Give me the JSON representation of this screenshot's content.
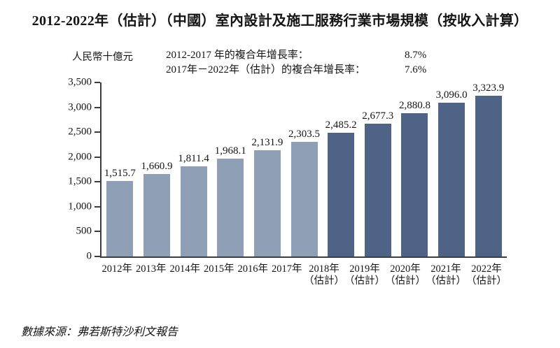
{
  "title": "2012-2022年（估計）（中國）室內設計及施工服務行業市場規模（按收入計算）",
  "unit_label": "人民幣十億元",
  "cagr": [
    {
      "label": "2012-2017 年的複合年增長率：",
      "value": "8.7%"
    },
    {
      "label": "2017年－2022年（估計）的複合年增長率：",
      "value": "7.6%"
    }
  ],
  "source": "數據來源：弗若斯特沙利文報告",
  "chart_data": {
    "type": "bar",
    "title": "2012-2022年（估計）（中國）室內設計及施工服務行業市場規模（按收入計算）",
    "ylabel": "人民幣十億元",
    "xlabel": "",
    "categories": [
      "2012年",
      "2013年",
      "2014年",
      "2015年",
      "2016年",
      "2017年",
      "2018年",
      "2019年",
      "2020年",
      "2021年",
      "2022年"
    ],
    "estimate_note": "（估計）",
    "historical_count": 6,
    "values": [
      1515.7,
      1660.9,
      1811.4,
      1968.1,
      2131.9,
      2303.5,
      2485.2,
      2677.3,
      2880.8,
      3096.0,
      3323.9
    ],
    "value_labels": [
      "1,515.7",
      "1,660.9",
      "1,811.4",
      "1,968.1",
      "2,131.9",
      "2,303.5",
      "2,485.2",
      "2,677.3",
      "2,880.8",
      "3,096.0",
      "3,323.9"
    ],
    "ylim": [
      0,
      3500
    ],
    "yticks": [
      0,
      500,
      1000,
      1500,
      2000,
      2500,
      3000,
      3500
    ],
    "ytick_labels": [
      "0",
      "500",
      "1,000",
      "1,500",
      "2,000",
      "2,500",
      "3,000",
      "3,500"
    ],
    "grid": false,
    "legend_position": "none",
    "colors": {
      "historical_bar": "#8fa0b6",
      "estimated_bar": "#4e6386",
      "axis": "#3c3c3c"
    }
  }
}
